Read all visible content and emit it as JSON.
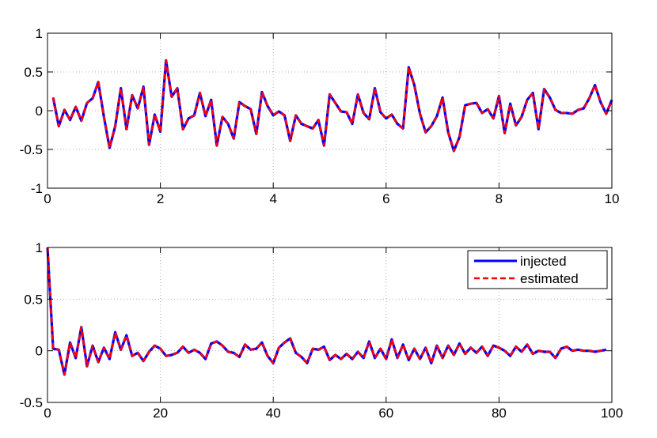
{
  "chart_data": [
    {
      "type": "line",
      "title": "",
      "xlabel": "",
      "ylabel": "",
      "xlim": [
        0,
        10
      ],
      "ylim": [
        -1,
        1
      ],
      "xticks": [
        0,
        2,
        4,
        6,
        8,
        10
      ],
      "xtick_labels": [
        "0",
        "2",
        "4",
        "6",
        "8",
        "10"
      ],
      "yticks": [
        -1,
        -0.5,
        0,
        0.5,
        1
      ],
      "ytick_labels": [
        "-1",
        "-0.5",
        "0",
        "0.5",
        "1"
      ],
      "grid": true,
      "legend": null,
      "x": [
        0.1,
        0.2,
        0.3,
        0.4,
        0.5,
        0.6,
        0.7,
        0.8,
        0.9,
        1.0,
        1.1,
        1.2,
        1.3,
        1.4,
        1.5,
        1.6,
        1.7,
        1.8,
        1.9,
        2.0,
        2.1,
        2.2,
        2.3,
        2.4,
        2.5,
        2.6,
        2.7,
        2.8,
        2.9,
        3.0,
        3.1,
        3.2,
        3.3,
        3.4,
        3.5,
        3.6,
        3.7,
        3.8,
        3.9,
        4.0,
        4.1,
        4.2,
        4.3,
        4.4,
        4.5,
        4.6,
        4.7,
        4.8,
        4.9,
        5.0,
        5.1,
        5.2,
        5.3,
        5.4,
        5.5,
        5.6,
        5.7,
        5.8,
        5.9,
        6.0,
        6.1,
        6.2,
        6.3,
        6.4,
        6.5,
        6.6,
        6.7,
        6.8,
        6.9,
        7.0,
        7.1,
        7.2,
        7.3,
        7.4,
        7.5,
        7.6,
        7.7,
        7.8,
        7.9,
        8.0,
        8.1,
        8.2,
        8.3,
        8.4,
        8.5,
        8.6,
        8.7,
        8.8,
        8.9,
        9.0,
        9.1,
        9.2,
        9.3,
        9.4,
        9.5,
        9.6,
        9.7,
        9.8,
        9.9,
        10.0
      ],
      "series": [
        {
          "name": "injected",
          "color": "#0000ff",
          "style": "solid",
          "values": [
            0.17,
            -0.2,
            0.01,
            -0.12,
            0.05,
            -0.13,
            0.1,
            0.16,
            0.37,
            -0.08,
            -0.48,
            -0.2,
            0.29,
            -0.24,
            0.2,
            0.03,
            0.31,
            -0.44,
            -0.05,
            -0.27,
            0.65,
            0.18,
            0.29,
            -0.24,
            -0.1,
            -0.06,
            0.23,
            -0.07,
            0.14,
            -0.45,
            -0.08,
            -0.17,
            -0.36,
            0.11,
            0.06,
            0.02,
            -0.3,
            0.24,
            0.06,
            -0.06,
            -0.01,
            -0.06,
            -0.39,
            -0.06,
            -0.17,
            -0.2,
            -0.23,
            -0.12,
            -0.45,
            0.21,
            0.1,
            -0.01,
            -0.02,
            -0.17,
            0.21,
            -0.03,
            -0.11,
            0.29,
            -0.02,
            -0.1,
            -0.05,
            -0.17,
            -0.23,
            0.56,
            0.33,
            -0.04,
            -0.28,
            -0.2,
            -0.07,
            0.17,
            -0.28,
            -0.52,
            -0.34,
            0.07,
            0.09,
            0.1,
            -0.03,
            0.02,
            -0.1,
            0.19,
            -0.29,
            0.09,
            -0.19,
            -0.08,
            0.14,
            0.23,
            -0.24,
            0.28,
            0.17,
            0.01,
            -0.03,
            -0.03,
            -0.04,
            0.01,
            0.03,
            0.16,
            0.33,
            0.11,
            -0.04,
            0.14
          ]
        },
        {
          "name": "estimated",
          "color": "#ff0000",
          "style": "dashed",
          "values": [
            0.17,
            -0.2,
            0.01,
            -0.12,
            0.05,
            -0.13,
            0.1,
            0.16,
            0.37,
            -0.08,
            -0.48,
            -0.2,
            0.29,
            -0.24,
            0.2,
            0.03,
            0.31,
            -0.44,
            -0.05,
            -0.27,
            0.65,
            0.18,
            0.29,
            -0.24,
            -0.1,
            -0.06,
            0.23,
            -0.07,
            0.14,
            -0.45,
            -0.08,
            -0.17,
            -0.36,
            0.11,
            0.06,
            0.02,
            -0.3,
            0.24,
            0.06,
            -0.06,
            -0.01,
            -0.06,
            -0.39,
            -0.06,
            -0.17,
            -0.2,
            -0.23,
            -0.12,
            -0.45,
            0.21,
            0.1,
            -0.01,
            -0.02,
            -0.17,
            0.21,
            -0.03,
            -0.11,
            0.29,
            -0.02,
            -0.1,
            -0.05,
            -0.17,
            -0.23,
            0.56,
            0.33,
            -0.04,
            -0.28,
            -0.2,
            -0.07,
            0.17,
            -0.28,
            -0.52,
            -0.34,
            0.07,
            0.09,
            0.1,
            -0.03,
            0.02,
            -0.1,
            0.19,
            -0.29,
            0.09,
            -0.19,
            -0.08,
            0.14,
            0.23,
            -0.24,
            0.28,
            0.17,
            0.01,
            -0.03,
            -0.03,
            -0.04,
            0.01,
            0.03,
            0.16,
            0.33,
            0.11,
            -0.04,
            0.14
          ]
        }
      ]
    },
    {
      "type": "line",
      "title": "",
      "xlabel": "",
      "ylabel": "",
      "xlim": [
        0,
        100
      ],
      "ylim": [
        -0.5,
        1
      ],
      "xticks": [
        0,
        20,
        40,
        60,
        80,
        100
      ],
      "xtick_labels": [
        "0",
        "20",
        "40",
        "60",
        "80",
        "100"
      ],
      "yticks": [
        -0.5,
        0,
        0.5,
        1
      ],
      "ytick_labels": [
        "-0.5",
        "0",
        "0.5",
        "1"
      ],
      "grid": true,
      "legend": "top-right",
      "x": [
        0,
        1,
        2,
        3,
        4,
        5,
        6,
        7,
        8,
        9,
        10,
        11,
        12,
        13,
        14,
        15,
        16,
        17,
        18,
        19,
        20,
        21,
        22,
        23,
        24,
        25,
        26,
        27,
        28,
        29,
        30,
        31,
        32,
        33,
        34,
        35,
        36,
        37,
        38,
        39,
        40,
        41,
        42,
        43,
        44,
        45,
        46,
        47,
        48,
        49,
        50,
        51,
        52,
        53,
        54,
        55,
        56,
        57,
        58,
        59,
        60,
        61,
        62,
        63,
        64,
        65,
        66,
        67,
        68,
        69,
        70,
        71,
        72,
        73,
        74,
        75,
        76,
        77,
        78,
        79,
        80,
        81,
        82,
        83,
        84,
        85,
        86,
        87,
        88,
        89,
        90,
        91,
        92,
        93,
        94,
        95,
        96,
        97,
        98,
        99
      ],
      "series": [
        {
          "name": "injected",
          "color": "#0000ff",
          "style": "solid",
          "values": [
            1.0,
            0.02,
            0.01,
            -0.23,
            0.08,
            -0.07,
            0.23,
            -0.15,
            0.05,
            -0.11,
            0.03,
            -0.08,
            0.18,
            0.01,
            0.15,
            -0.05,
            -0.02,
            -0.1,
            -0.01,
            0.05,
            0.02,
            -0.05,
            -0.04,
            -0.02,
            0.04,
            -0.02,
            0.01,
            -0.02,
            -0.08,
            0.07,
            0.09,
            0.05,
            -0.01,
            -0.02,
            -0.06,
            0.06,
            0.01,
            0.02,
            0.08,
            -0.05,
            -0.12,
            0.03,
            0.08,
            0.12,
            -0.02,
            -0.06,
            -0.12,
            0.02,
            0.01,
            0.04,
            -0.09,
            -0.04,
            -0.08,
            -0.03,
            -0.08,
            -0.01,
            -0.07,
            0.09,
            -0.07,
            0.02,
            -0.08,
            0.11,
            -0.07,
            0.06,
            -0.09,
            0.02,
            -0.08,
            0.03,
            -0.12,
            0.05,
            -0.07,
            0.05,
            -0.04,
            0.07,
            -0.03,
            0.03,
            -0.02,
            0.04,
            -0.05,
            0.05,
            0.03,
            0.0,
            -0.05,
            0.04,
            -0.01,
            0.06,
            -0.03,
            0.0,
            -0.01,
            -0.01,
            -0.07,
            0.02,
            0.04,
            0.0,
            0.01,
            0.0,
            0.0,
            -0.01,
            0.0,
            0.01
          ]
        },
        {
          "name": "estimated",
          "color": "#ff0000",
          "style": "dashed",
          "values": [
            1.0,
            0.02,
            0.01,
            -0.23,
            0.08,
            -0.07,
            0.23,
            -0.15,
            0.05,
            -0.11,
            0.03,
            -0.08,
            0.18,
            0.01,
            0.15,
            -0.05,
            -0.02,
            -0.1,
            -0.01,
            0.05,
            0.02,
            -0.05,
            -0.04,
            -0.02,
            0.04,
            -0.02,
            0.01,
            -0.02,
            -0.08,
            0.07,
            0.09,
            0.05,
            -0.01,
            -0.02,
            -0.06,
            0.06,
            0.01,
            0.02,
            0.08,
            -0.05,
            -0.12,
            0.03,
            0.08,
            0.12,
            -0.02,
            -0.06,
            -0.12,
            0.02,
            0.01,
            0.04,
            -0.09,
            -0.04,
            -0.08,
            -0.03,
            -0.08,
            -0.01,
            -0.07,
            0.09,
            -0.07,
            0.02,
            -0.08,
            0.11,
            -0.07,
            0.06,
            -0.09,
            0.02,
            -0.08,
            0.03,
            -0.12,
            0.05,
            -0.07,
            0.05,
            -0.04,
            0.07,
            -0.03,
            0.03,
            -0.02,
            0.04,
            -0.05,
            0.05,
            0.03,
            0.0,
            -0.05,
            0.04,
            -0.01,
            0.06,
            -0.03,
            0.0,
            -0.01,
            -0.01,
            -0.07,
            0.02,
            0.04,
            0.0,
            0.01,
            0.0,
            0.0,
            -0.01,
            0.0,
            0.01
          ]
        }
      ]
    }
  ]
}
